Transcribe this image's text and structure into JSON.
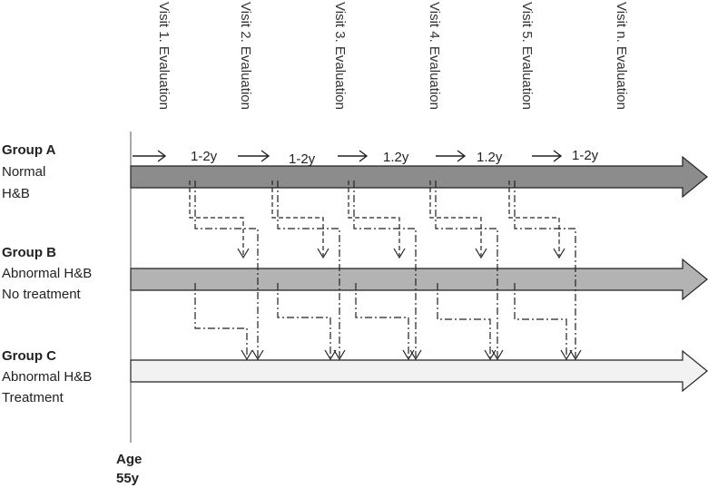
{
  "visits": [
    "Visit 1. Evaluation",
    "Visit 2. Evaluation",
    "Visit 3. Evaluation",
    "Visit 4. Evaluation",
    "Visit 5. Evaluation",
    "Visit n. Evaluation"
  ],
  "intervals": [
    "1-2y",
    "1-2y",
    "1.2y",
    "1.2y",
    "1-2y"
  ],
  "groups": [
    {
      "title": "Group A",
      "lines": [
        "Normal",
        "H&B"
      ],
      "color": "#8c8c8c"
    },
    {
      "title": "Group B",
      "lines": [
        "Abnormal H&B",
        "No treatment"
      ],
      "color": "#b3b3b3"
    },
    {
      "title": "Group C",
      "lines": [
        "Abnormal H&B",
        "Treatment"
      ],
      "color": "#f2f2f2"
    }
  ],
  "age": {
    "label": "Age",
    "value": "55y"
  }
}
